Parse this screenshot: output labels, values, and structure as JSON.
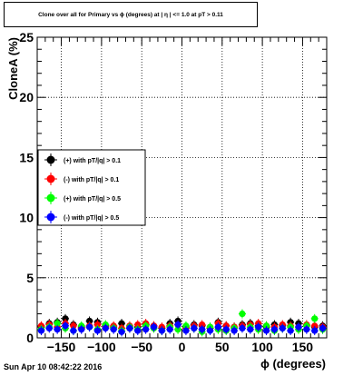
{
  "title": "Clone  over all for Primary vs ϕ (degrees) at | η | <= 1.0 at pT > 0.11",
  "footer_date": "Sun Apr 10 08:42:22 2016",
  "chart_data": {
    "type": "scatter",
    "xlabel": "ϕ (degrees)",
    "ylabel": "CloneA (%)",
    "xlim": [
      -180,
      180
    ],
    "ylim": [
      0,
      25
    ],
    "x_ticks": [
      -150,
      -100,
      -50,
      0,
      50,
      100,
      150
    ],
    "y_ticks": [
      0,
      5,
      10,
      15,
      20,
      25
    ],
    "grid": true,
    "legend_position": "left, middle",
    "series": [
      {
        "name": "(+) with pT/|q| > 0.1",
        "color": "#000000",
        "x": [
          -175,
          -165,
          -155,
          -145,
          -135,
          -125,
          -115,
          -105,
          -95,
          -85,
          -75,
          -65,
          -55,
          -45,
          -35,
          -25,
          -15,
          -5,
          5,
          15,
          25,
          35,
          45,
          55,
          65,
          75,
          85,
          95,
          105,
          115,
          125,
          135,
          145,
          155,
          165,
          175
        ],
        "y": [
          0.9,
          1.2,
          1.3,
          1.6,
          1.1,
          0.9,
          1.4,
          1.3,
          1.0,
          0.9,
          1.2,
          0.8,
          0.9,
          1.1,
          1.0,
          0.8,
          1.2,
          1.4,
          0.9,
          1.1,
          1.0,
          0.8,
          1.3,
          1.0,
          0.9,
          1.1,
          1.2,
          1.0,
          0.9,
          1.1,
          1.0,
          1.3,
          1.2,
          1.0,
          0.9,
          1.0
        ]
      },
      {
        "name": "(-) with pT/|q| > 0.1",
        "color": "#ff0000",
        "x": [
          -175,
          -165,
          -155,
          -145,
          -135,
          -125,
          -115,
          -105,
          -95,
          -85,
          -75,
          -65,
          -55,
          -45,
          -35,
          -25,
          -15,
          -5,
          5,
          15,
          25,
          35,
          45,
          55,
          65,
          75,
          85,
          95,
          105,
          115,
          125,
          135,
          145,
          155,
          165,
          175
        ],
        "y": [
          1.0,
          1.1,
          0.9,
          1.2,
          1.0,
          0.8,
          1.0,
          1.1,
          0.9,
          1.0,
          0.8,
          1.0,
          1.1,
          1.2,
          1.0,
          0.9,
          1.0,
          1.1,
          0.8,
          1.0,
          1.1,
          0.9,
          1.2,
          1.0,
          0.9,
          1.0,
          1.1,
          1.2,
          1.0,
          0.9,
          1.1,
          1.0,
          0.9,
          1.1,
          1.0,
          0.9
        ]
      },
      {
        "name": "(+) with pT/|q| > 0.5",
        "color": "#00ff00",
        "x": [
          -175,
          -165,
          -155,
          -145,
          -135,
          -125,
          -115,
          -105,
          -95,
          -85,
          -75,
          -65,
          -55,
          -45,
          -35,
          -25,
          -15,
          -5,
          5,
          15,
          25,
          35,
          45,
          55,
          65,
          75,
          85,
          95,
          105,
          115,
          125,
          135,
          145,
          155,
          165,
          175
        ],
        "y": [
          0.7,
          0.9,
          1.2,
          0.8,
          0.6,
          1.0,
          0.9,
          0.7,
          1.1,
          0.8,
          0.6,
          0.9,
          0.7,
          1.0,
          0.8,
          0.6,
          0.9,
          0.7,
          1.0,
          0.8,
          0.5,
          0.9,
          0.7,
          0.6,
          0.8,
          2.0,
          0.9,
          0.7,
          1.0,
          0.6,
          0.8,
          0.9,
          0.7,
          1.0,
          1.6,
          0.7
        ]
      },
      {
        "name": "(-) with pT/|q| > 0.5",
        "color": "#0000ff",
        "x": [
          -175,
          -165,
          -155,
          -145,
          -135,
          -125,
          -115,
          -105,
          -95,
          -85,
          -75,
          -65,
          -55,
          -45,
          -35,
          -25,
          -15,
          -5,
          5,
          15,
          25,
          35,
          45,
          55,
          65,
          75,
          85,
          95,
          105,
          115,
          125,
          135,
          145,
          155,
          165,
          175
        ],
        "y": [
          0.6,
          0.8,
          0.7,
          1.0,
          0.6,
          0.7,
          0.9,
          0.6,
          0.8,
          0.7,
          0.5,
          0.8,
          0.6,
          0.7,
          0.9,
          0.6,
          0.7,
          1.1,
          0.6,
          0.8,
          0.7,
          0.6,
          0.9,
          0.7,
          0.6,
          0.8,
          0.7,
          0.9,
          0.6,
          0.7,
          0.8,
          0.6,
          0.9,
          0.7,
          0.6,
          0.8
        ]
      }
    ]
  }
}
